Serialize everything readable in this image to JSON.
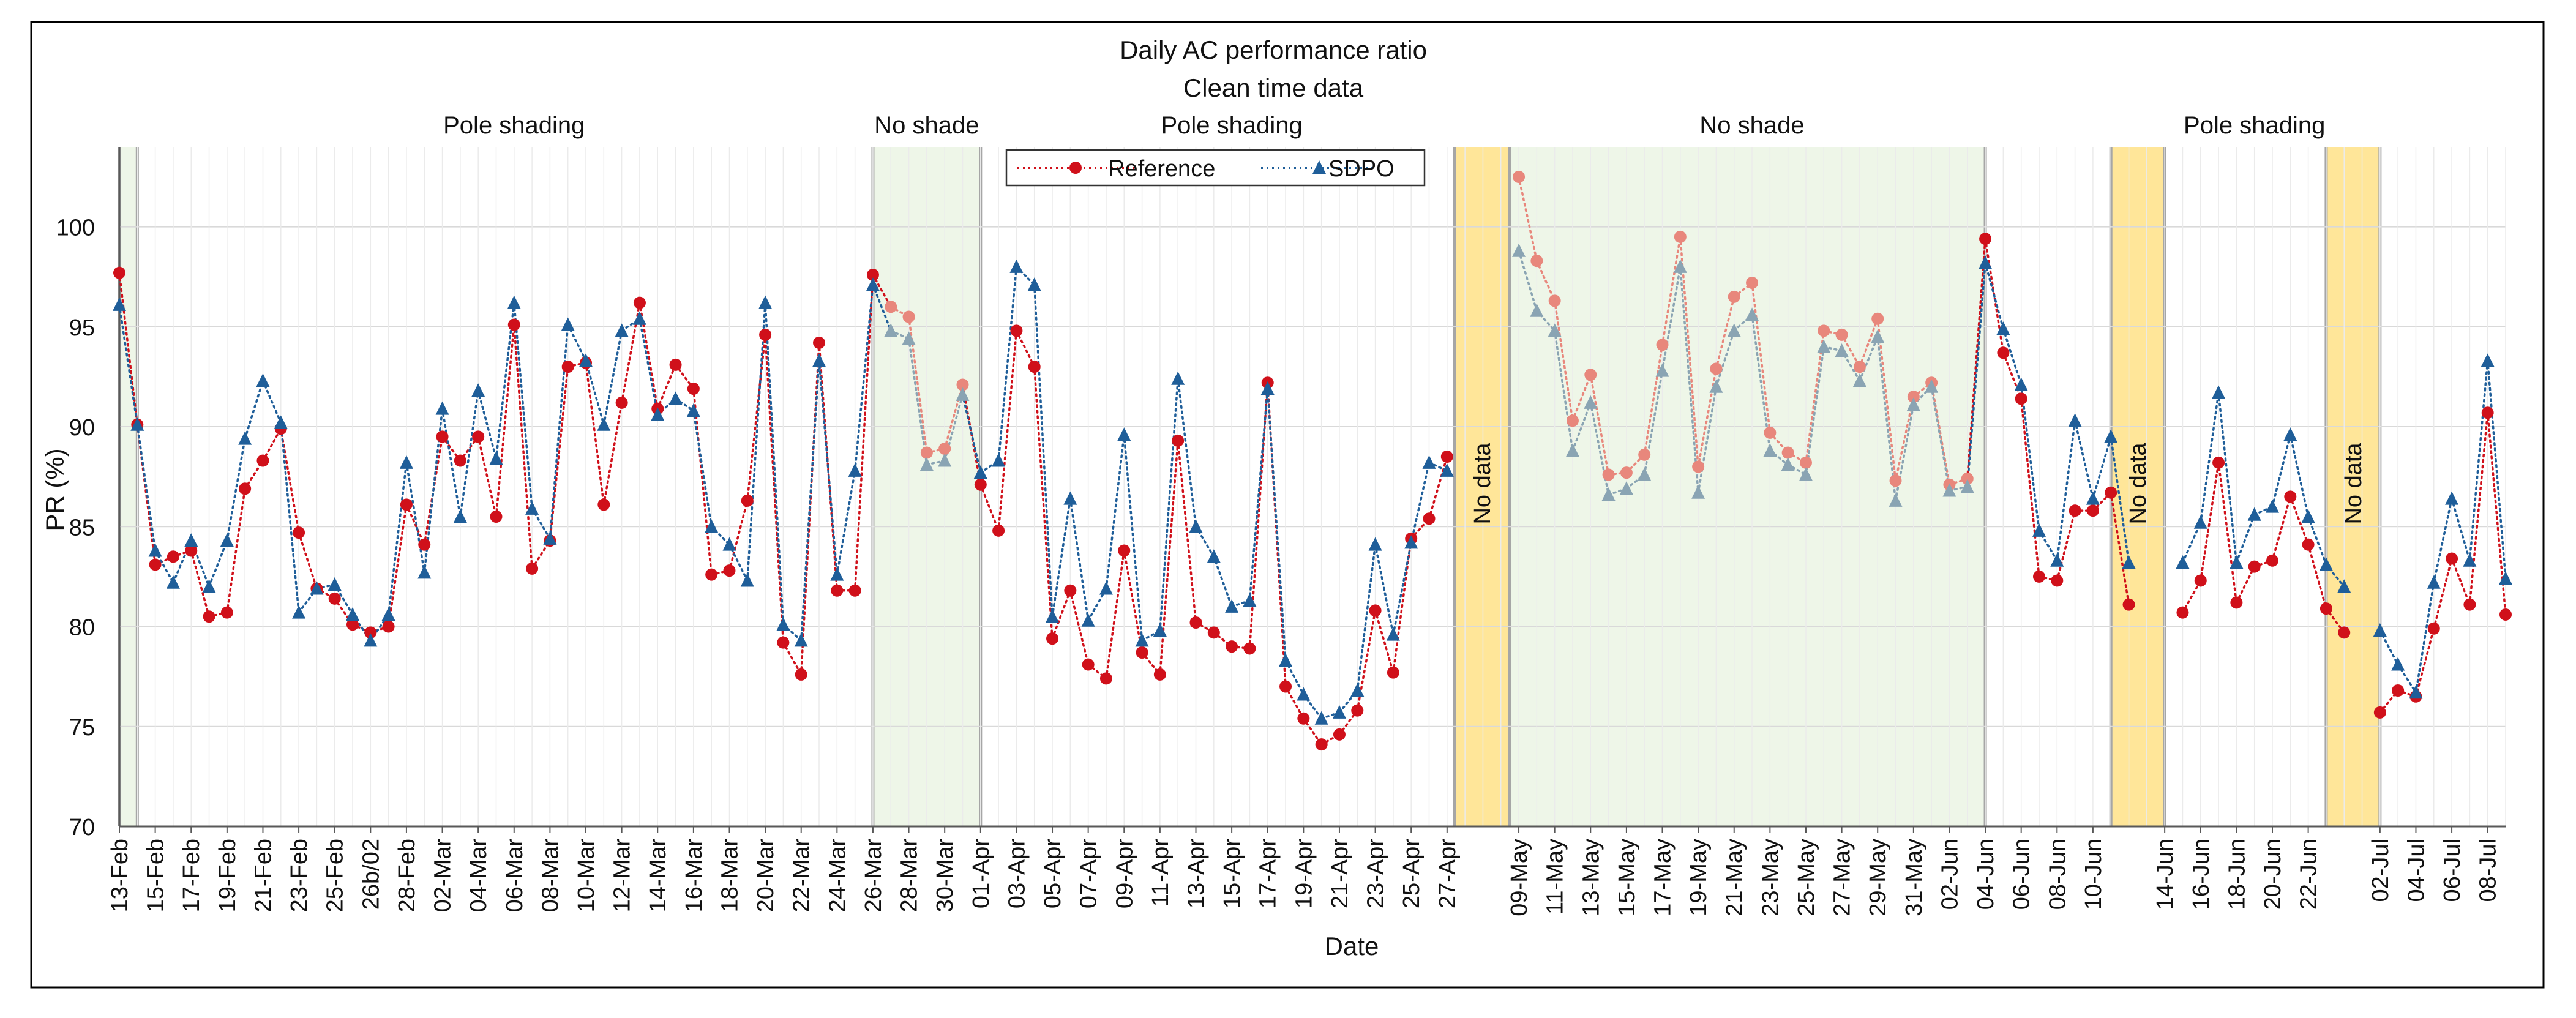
{
  "chart_data": {
    "type": "line",
    "title": "Daily AC performance ratio",
    "subtitle": "Clean time data",
    "xlabel": "Date",
    "ylabel": "PR (%)",
    "ylim": [
      70,
      104
    ],
    "yticks": [
      70,
      75,
      80,
      85,
      90,
      95,
      100
    ],
    "grid": true,
    "legend_position": "top-center",
    "categories": [
      "13-Feb",
      "14-Feb",
      "15-Feb",
      "16-Feb",
      "17-Feb",
      "18-Feb",
      "19-Feb",
      "20-Feb",
      "21-Feb",
      "22-Feb",
      "23-Feb",
      "24-Feb",
      "25-Feb",
      "26-Feb",
      "26b/02",
      "27-Feb",
      "28-Feb",
      "01-Mar",
      "02-Mar",
      "03-Mar",
      "04-Mar",
      "05-Mar",
      "06-Mar",
      "07-Mar",
      "08-Mar",
      "09-Mar",
      "10-Mar",
      "11-Mar",
      "12-Mar",
      "13-Mar",
      "14-Mar",
      "15-Mar",
      "16-Mar",
      "17-Mar",
      "18-Mar",
      "19-Mar",
      "20-Mar",
      "21-Mar",
      "22-Mar",
      "23-Mar",
      "24-Mar",
      "25-Mar",
      "26-Mar",
      "27-Mar",
      "28-Mar",
      "29-Mar",
      "30-Mar",
      "31-Mar",
      "01-Apr",
      "02-Apr",
      "03-Apr",
      "04-Apr",
      "05-Apr",
      "06-Apr",
      "07-Apr",
      "08-Apr",
      "09-Apr",
      "10-Apr",
      "11-Apr",
      "12-Apr",
      "13-Apr",
      "14-Apr",
      "15-Apr",
      "16-Apr",
      "17-Apr",
      "18-Apr",
      "19-Apr",
      "20-Apr",
      "21-Apr",
      "22-Apr",
      "23-Apr",
      "24-Apr",
      "25-Apr",
      "26-Apr",
      "27-Apr",
      "28-Apr",
      "29-Apr",
      "30-Apr",
      "09-May",
      "10-May",
      "11-May",
      "12-May",
      "13-May",
      "14-May",
      "15-May",
      "16-May",
      "17-May",
      "18-May",
      "19-May",
      "20-May",
      "21-May",
      "22-May",
      "23-May",
      "24-May",
      "25-May",
      "26-May",
      "27-May",
      "28-May",
      "29-May",
      "30-May",
      "31-May",
      "01-Jun",
      "02-Jun",
      "03-Jun",
      "04-Jun",
      "05-Jun",
      "06-Jun",
      "07-Jun",
      "08-Jun",
      "09-Jun",
      "10-Jun",
      "11-Jun",
      "12-Jun",
      "13-Jun",
      "14-Jun",
      "15-Jun",
      "16-Jun",
      "17-Jun",
      "18-Jun",
      "19-Jun",
      "20-Jun",
      "21-Jun",
      "22-Jun",
      "23-Jun",
      "24-Jun",
      "25-Jun",
      "02-Jul",
      "03-Jul",
      "04-Jul",
      "05-Jul",
      "06-Jul",
      "07-Jul",
      "08-Jul",
      "09-Jul"
    ],
    "tick_labels": [
      "13-Feb",
      "15-Feb",
      "17-Feb",
      "19-Feb",
      "21-Feb",
      "23-Feb",
      "25-Feb",
      "26b/02",
      "28-Feb",
      "02-Mar",
      "04-Mar",
      "06-Mar",
      "08-Mar",
      "10-Mar",
      "12-Mar",
      "14-Mar",
      "16-Mar",
      "18-Mar",
      "20-Mar",
      "22-Mar",
      "24-Mar",
      "26-Mar",
      "28-Mar",
      "30-Mar",
      "01-Apr",
      "03-Apr",
      "05-Apr",
      "07-Apr",
      "09-Apr",
      "11-Apr",
      "13-Apr",
      "15-Apr",
      "17-Apr",
      "19-Apr",
      "21-Apr",
      "23-Apr",
      "25-Apr",
      "27-Apr",
      "09-May",
      "11-May",
      "13-May",
      "15-May",
      "17-May",
      "19-May",
      "21-May",
      "23-May",
      "25-May",
      "27-May",
      "29-May",
      "31-May",
      "02-Jun",
      "04-Jun",
      "06-Jun",
      "08-Jun",
      "10-Jun",
      "14-Jun",
      "16-Jun",
      "18-Jun",
      "20-Jun",
      "22-Jun",
      "02-Jul",
      "04-Jul",
      "06-Jul",
      "08-Jul"
    ],
    "series": [
      {
        "name": "Reference",
        "color": "#d0101a",
        "marker": "circle",
        "line_style": "dotted",
        "values": [
          97.7,
          90.1,
          83.1,
          83.5,
          83.8,
          80.5,
          80.7,
          86.9,
          88.3,
          89.9,
          84.7,
          81.9,
          81.4,
          80.1,
          79.7,
          80.0,
          86.1,
          84.1,
          89.5,
          88.3,
          89.5,
          85.5,
          95.1,
          82.9,
          84.3,
          93.0,
          93.2,
          86.1,
          91.2,
          96.2,
          90.9,
          93.1,
          91.9,
          82.6,
          82.8,
          86.3,
          94.6,
          79.2,
          77.6,
          94.2,
          81.8,
          81.8,
          97.6,
          96.0,
          95.5,
          88.7,
          88.9,
          92.1,
          87.1,
          84.8,
          94.8,
          93.0,
          79.4,
          81.8,
          78.1,
          77.4,
          83.8,
          78.7,
          77.6,
          89.3,
          80.2,
          79.7,
          79.0,
          78.9,
          92.2,
          77.0,
          75.4,
          74.1,
          74.6,
          75.8,
          80.8,
          77.7,
          84.4,
          85.4,
          88.5,
          null,
          null,
          null,
          102.5,
          98.3,
          96.3,
          90.3,
          92.6,
          87.6,
          87.7,
          88.6,
          94.1,
          99.5,
          88.0,
          92.9,
          96.5,
          97.2,
          89.7,
          88.7,
          88.2,
          94.8,
          94.6,
          93.0,
          95.4,
          87.3,
          91.5,
          92.2,
          87.1,
          87.4,
          99.4,
          93.7,
          91.4,
          82.5,
          82.3,
          85.8,
          85.8,
          86.7,
          81.1,
          null,
          null,
          80.7,
          82.3,
          88.2,
          81.2,
          83.0,
          83.3,
          86.5,
          84.1,
          80.9,
          79.7,
          null,
          75.7,
          76.8,
          76.5,
          79.9,
          83.4,
          81.1,
          90.7,
          80.6
        ]
      },
      {
        "name": "SDPO",
        "color": "#1f5e99",
        "marker": "triangle",
        "line_style": "dotted",
        "values": [
          96.1,
          90.1,
          83.8,
          82.2,
          84.3,
          82.0,
          84.3,
          89.4,
          92.3,
          90.2,
          80.7,
          81.9,
          82.1,
          80.6,
          79.3,
          80.6,
          88.2,
          82.7,
          90.9,
          85.5,
          91.8,
          88.4,
          96.2,
          85.9,
          84.4,
          95.1,
          93.3,
          90.1,
          94.8,
          95.4,
          90.6,
          91.4,
          90.8,
          85.0,
          84.1,
          82.3,
          96.2,
          80.1,
          79.3,
          93.3,
          82.6,
          87.8,
          97.1,
          94.8,
          94.4,
          88.1,
          88.3,
          91.6,
          87.7,
          88.3,
          98.0,
          97.1,
          80.5,
          86.4,
          80.3,
          81.9,
          89.6,
          79.3,
          79.8,
          92.4,
          85.0,
          83.5,
          81.0,
          81.3,
          91.9,
          78.3,
          76.6,
          75.4,
          75.7,
          76.8,
          84.1,
          79.6,
          84.2,
          88.2,
          87.8,
          null,
          null,
          null,
          98.8,
          95.8,
          94.8,
          88.8,
          91.2,
          86.6,
          86.9,
          87.6,
          92.8,
          98.0,
          86.7,
          92.0,
          94.8,
          95.6,
          88.8,
          88.1,
          87.6,
          94.0,
          93.8,
          92.3,
          94.5,
          86.3,
          91.1,
          92.0,
          86.8,
          87.0,
          98.2,
          94.9,
          92.1,
          84.8,
          83.3,
          90.3,
          86.4,
          89.5,
          83.2,
          null,
          null,
          83.2,
          85.2,
          91.7,
          83.2,
          85.6,
          86.0,
          89.6,
          85.5,
          83.1,
          82.0,
          null,
          79.8,
          78.1,
          76.7,
          82.2,
          86.4,
          83.3,
          93.3,
          82.4
        ]
      }
    ],
    "shaded_regions": [
      {
        "label": "",
        "kind": "no-shade",
        "from_index": 0,
        "to_index": 1
      },
      {
        "label": "No shade",
        "kind": "no-shade",
        "from_index": 42,
        "to_index": 48
      },
      {
        "label": "No data",
        "kind": "no-data",
        "from_index": 74.4,
        "to_index": 77.5
      },
      {
        "label": "No shade",
        "kind": "no-shade",
        "from_index": 77.5,
        "to_index": 104
      },
      {
        "label": "No data",
        "kind": "no-data",
        "from_index": 111,
        "to_index": 114
      },
      {
        "label": "No data",
        "kind": "no-data",
        "from_index": 123,
        "to_index": 126
      }
    ],
    "top_annotations": [
      {
        "label": "Pole shading",
        "index": 22
      },
      {
        "label": "No shade",
        "index": 45
      },
      {
        "label": "Pole shading",
        "index": 62
      },
      {
        "label": "No shade",
        "index": 91
      },
      {
        "label": "Pole shading",
        "index": 119
      }
    ],
    "colors": {
      "no_shade_fill": "#e2f0d9",
      "no_data_fill": "#ffe699",
      "faded_reference": "#e8877c",
      "faded_sdpo": "#8aa4b3",
      "grid": "#d9d9d9",
      "axis": "#595959"
    }
  }
}
